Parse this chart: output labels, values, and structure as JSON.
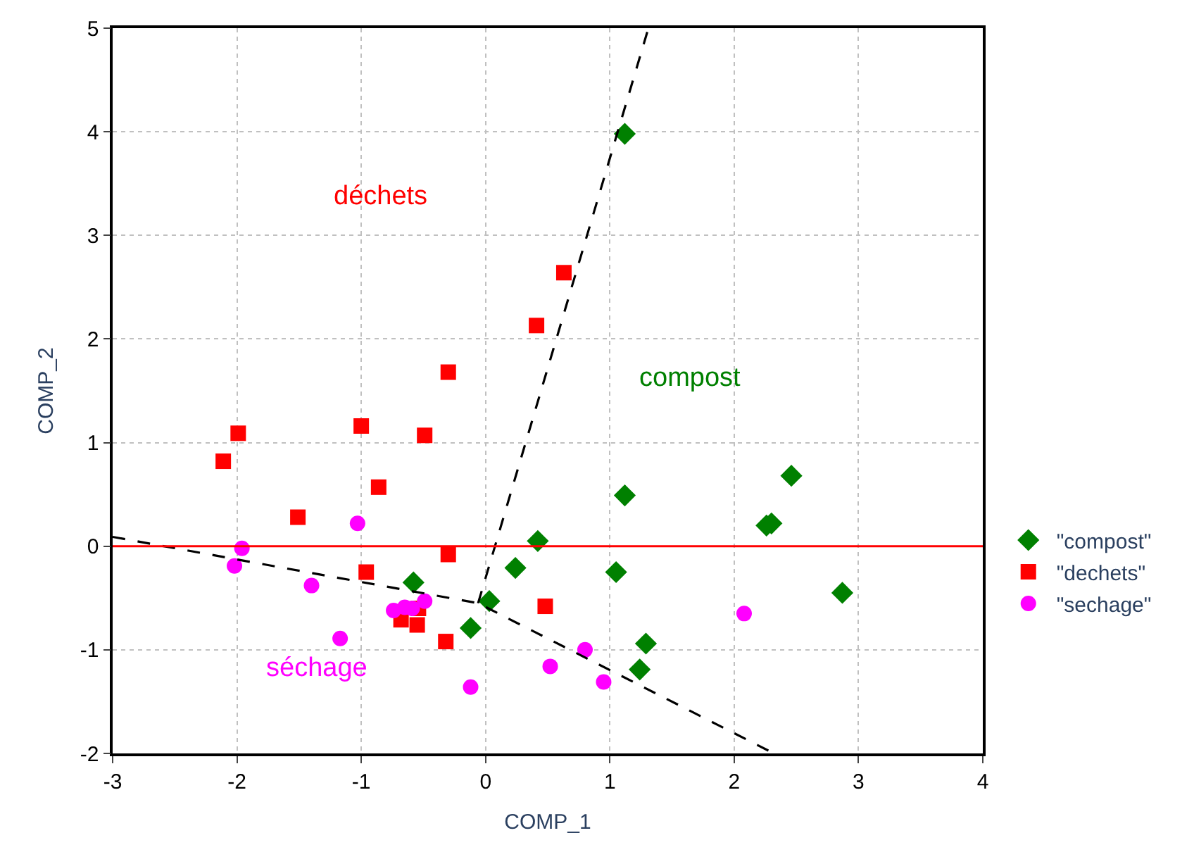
{
  "chart_data": {
    "type": "scatter",
    "xlabel": "COMP_1",
    "ylabel": "COMP_2",
    "xlim": [
      -3,
      4
    ],
    "xticks": [
      -3,
      -2,
      -1,
      0,
      1,
      2,
      3,
      4
    ],
    "ylim": [
      -2,
      5
    ],
    "yticks": [
      -2,
      -1,
      0,
      1,
      2,
      3,
      4,
      5
    ],
    "grid": true,
    "legend": "right",
    "series": [
      {
        "name": "\"compost\"",
        "color": "#008000",
        "marker": "diamond",
        "x": [
          1.12,
          2.46,
          1.12,
          0.42,
          2.3,
          2.26,
          2.87,
          0.24,
          1.05,
          -0.58,
          0.03,
          1.29,
          1.24,
          -0.12
        ],
        "values": [
          3.98,
          0.68,
          0.49,
          0.05,
          0.22,
          0.2,
          -0.45,
          -0.21,
          -0.25,
          -0.35,
          -0.53,
          -0.94,
          -1.19,
          -0.79
        ]
      },
      {
        "name": "\"dechets\"",
        "color": "#ff0000",
        "marker": "square",
        "x": [
          0.63,
          0.41,
          -0.3,
          -0.49,
          -1.0,
          -1.99,
          -2.11,
          -0.86,
          -1.51,
          -0.3,
          -0.96,
          0.48,
          -0.54,
          -0.68,
          -0.55,
          -0.32
        ],
        "values": [
          2.64,
          2.13,
          1.68,
          1.07,
          1.16,
          1.09,
          0.82,
          0.57,
          0.28,
          -0.08,
          -0.25,
          -0.58,
          -0.6,
          -0.71,
          -0.76,
          -0.92
        ]
      },
      {
        "name": "\"sechage\"",
        "color": "#ff00ff",
        "marker": "circle",
        "x": [
          -1.96,
          -2.02,
          -1.4,
          -1.03,
          -1.17,
          -0.12,
          -0.74,
          -0.65,
          -0.59,
          -0.49,
          0.8,
          0.52,
          0.95,
          2.08
        ],
        "values": [
          -0.02,
          -0.19,
          -0.38,
          0.22,
          -0.89,
          -1.36,
          -0.62,
          -0.59,
          -0.6,
          -0.53,
          -1.0,
          -1.16,
          -1.31,
          -0.65
        ]
      },
      {
        "type": "line",
        "color": "#000000",
        "line_style": "dashed",
        "marker": "none",
        "x": [
          -3,
          -0.06,
          2.32
        ],
        "values": [
          0.09,
          -0.55,
          -2
        ]
      },
      {
        "type": "line",
        "color": "#000000",
        "line_style": "dashed",
        "marker": "none",
        "x": [
          -0.06,
          1.31
        ],
        "values": [
          -0.55,
          5
        ]
      }
    ],
    "ref_lines": [
      {
        "axis": "y",
        "value": 0,
        "color": "#ff0000",
        "line_style": "solid"
      }
    ],
    "annotations": [
      "compost",
      "déchets",
      "séchage"
    ]
  }
}
